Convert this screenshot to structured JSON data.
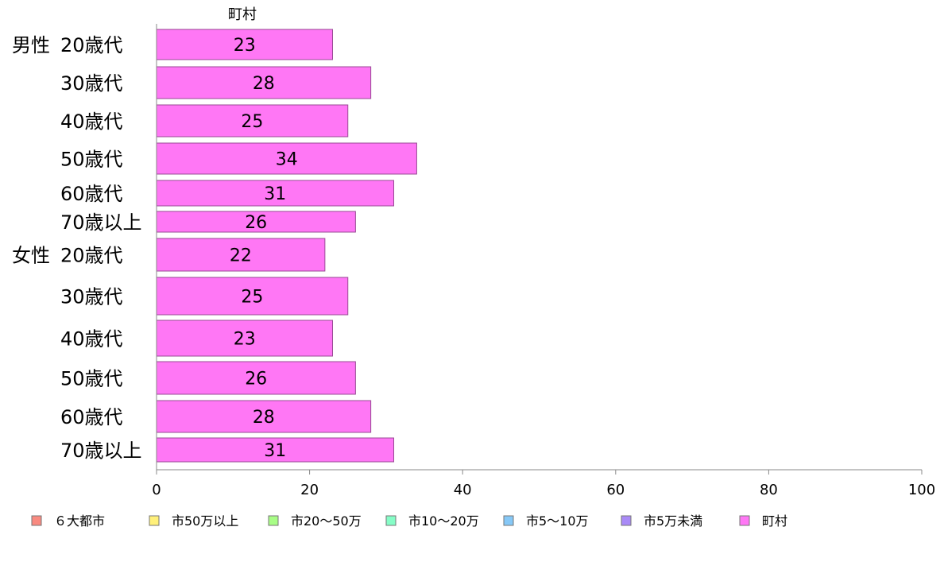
{
  "chart_data": {
    "type": "bar",
    "orientation": "horizontal",
    "title": "町村",
    "groups": [
      {
        "label": "男性",
        "start": 0
      },
      {
        "label": "女性",
        "start": 6
      }
    ],
    "categories": [
      "20歳代",
      "30歳代",
      "40歳代",
      "50歳代",
      "60歳代",
      "70歳以上",
      "20歳代",
      "30歳代",
      "40歳代",
      "50歳代",
      "60歳代",
      "70歳以上"
    ],
    "series": [
      {
        "name": "町村",
        "color": "#ff77f5",
        "values": [
          23,
          28,
          25,
          34,
          31,
          26,
          22,
          25,
          23,
          26,
          28,
          31
        ]
      }
    ],
    "xlim": [
      0,
      100
    ],
    "xticks": [
      "0",
      "20",
      "40",
      "60",
      "80",
      "100"
    ],
    "grid": false,
    "legend": {
      "placement": "bottom",
      "items": [
        {
          "label": "６大都市",
          "color": "#f98a80"
        },
        {
          "label": "市50万以上",
          "color": "#fff07a"
        },
        {
          "label": "市20〜50万",
          "color": "#a8fd86"
        },
        {
          "label": "市10〜20万",
          "color": "#86fdc7"
        },
        {
          "label": "市5〜10万",
          "color": "#86c8f7"
        },
        {
          "label": "市5万未満",
          "color": "#a98af7"
        },
        {
          "label": "町村",
          "color": "#ff77f5"
        }
      ]
    }
  }
}
